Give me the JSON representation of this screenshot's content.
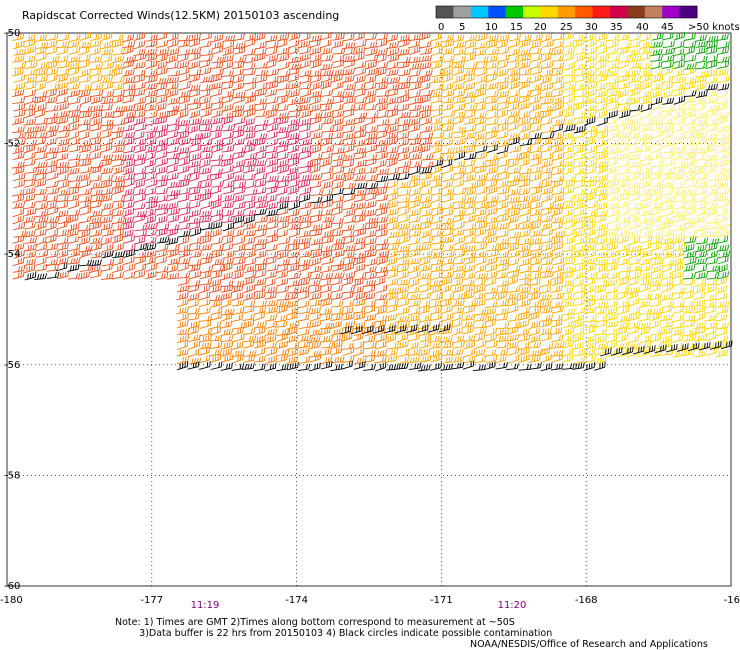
{
  "title": "Rapidscat Corrected Winds(12.5KM) 20150103 ascending",
  "scale": {
    "colors": [
      "#555555",
      "#a0a0a0",
      "#00c8ff",
      "#0050ff",
      "#00c800",
      "#c8ff00",
      "#ffd700",
      "#ff9a00",
      "#ff5a00",
      "#ff1a1a",
      "#d0004a",
      "#8b3a1a",
      "#c08060",
      "#a000c8",
      "#4b0082"
    ],
    "labels": [
      "0",
      "5",
      "10",
      "15",
      "20",
      "25",
      "30",
      "35",
      "40",
      "45",
      ">50 knots"
    ]
  },
  "axes": {
    "x_ticks": [
      "-180",
      "-177",
      "-174",
      "-171",
      "-168",
      "-16"
    ],
    "y_ticks": [
      "-50",
      "-52",
      "-54",
      "-56",
      "-58",
      "-60"
    ],
    "x_range": [
      -180,
      -165
    ],
    "y_range": [
      -60,
      -50
    ]
  },
  "times": [
    "11:19",
    "11:20"
  ],
  "notes": "Note: 1) Times are GMT 2)Times along bottom correspond to measurement at ~50S\n        3)Data buffer is 22 hrs from 20150103 4) Black circles indicate possible contamination",
  "credit": "NOAA/NESDIS/Office of Research and Applications",
  "wind_colors": {
    "calm": "#ffee66",
    "light": "#ffd700",
    "moderate": "#ffa500",
    "fresh": "#ff7f00",
    "strong": "#e85020",
    "gale": "#d8285a",
    "contaminated": "#000000",
    "green": "#0aa000"
  }
}
